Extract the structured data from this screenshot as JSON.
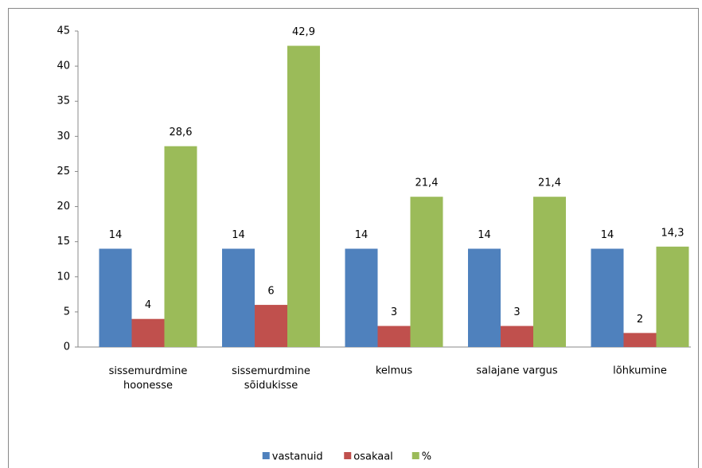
{
  "chart_data": {
    "type": "bar",
    "categories": [
      "sissemurdmine\nhoonesse",
      "sissemurdmine\nsõidukisse",
      "kelmus",
      "salajane vargus",
      "lõhkumine"
    ],
    "series": [
      {
        "name": "vastanuid",
        "color": "#4f81bd",
        "values": [
          14,
          14,
          14,
          14,
          14
        ]
      },
      {
        "name": "osakaal",
        "color": "#c0504d",
        "values": [
          4,
          6,
          3,
          3,
          2
        ]
      },
      {
        "name": "%",
        "color": "#9bbb59",
        "values": [
          28.6,
          42.9,
          21.4,
          21.4,
          14.3
        ],
        "value_labels": [
          "28,6",
          "42,9",
          "21,4",
          "21,4",
          "14,3"
        ]
      }
    ],
    "ylim": [
      0,
      45
    ],
    "yticks": [
      0,
      5,
      10,
      15,
      20,
      25,
      30,
      35,
      40,
      45
    ],
    "grid": false,
    "legend": "bottom"
  }
}
